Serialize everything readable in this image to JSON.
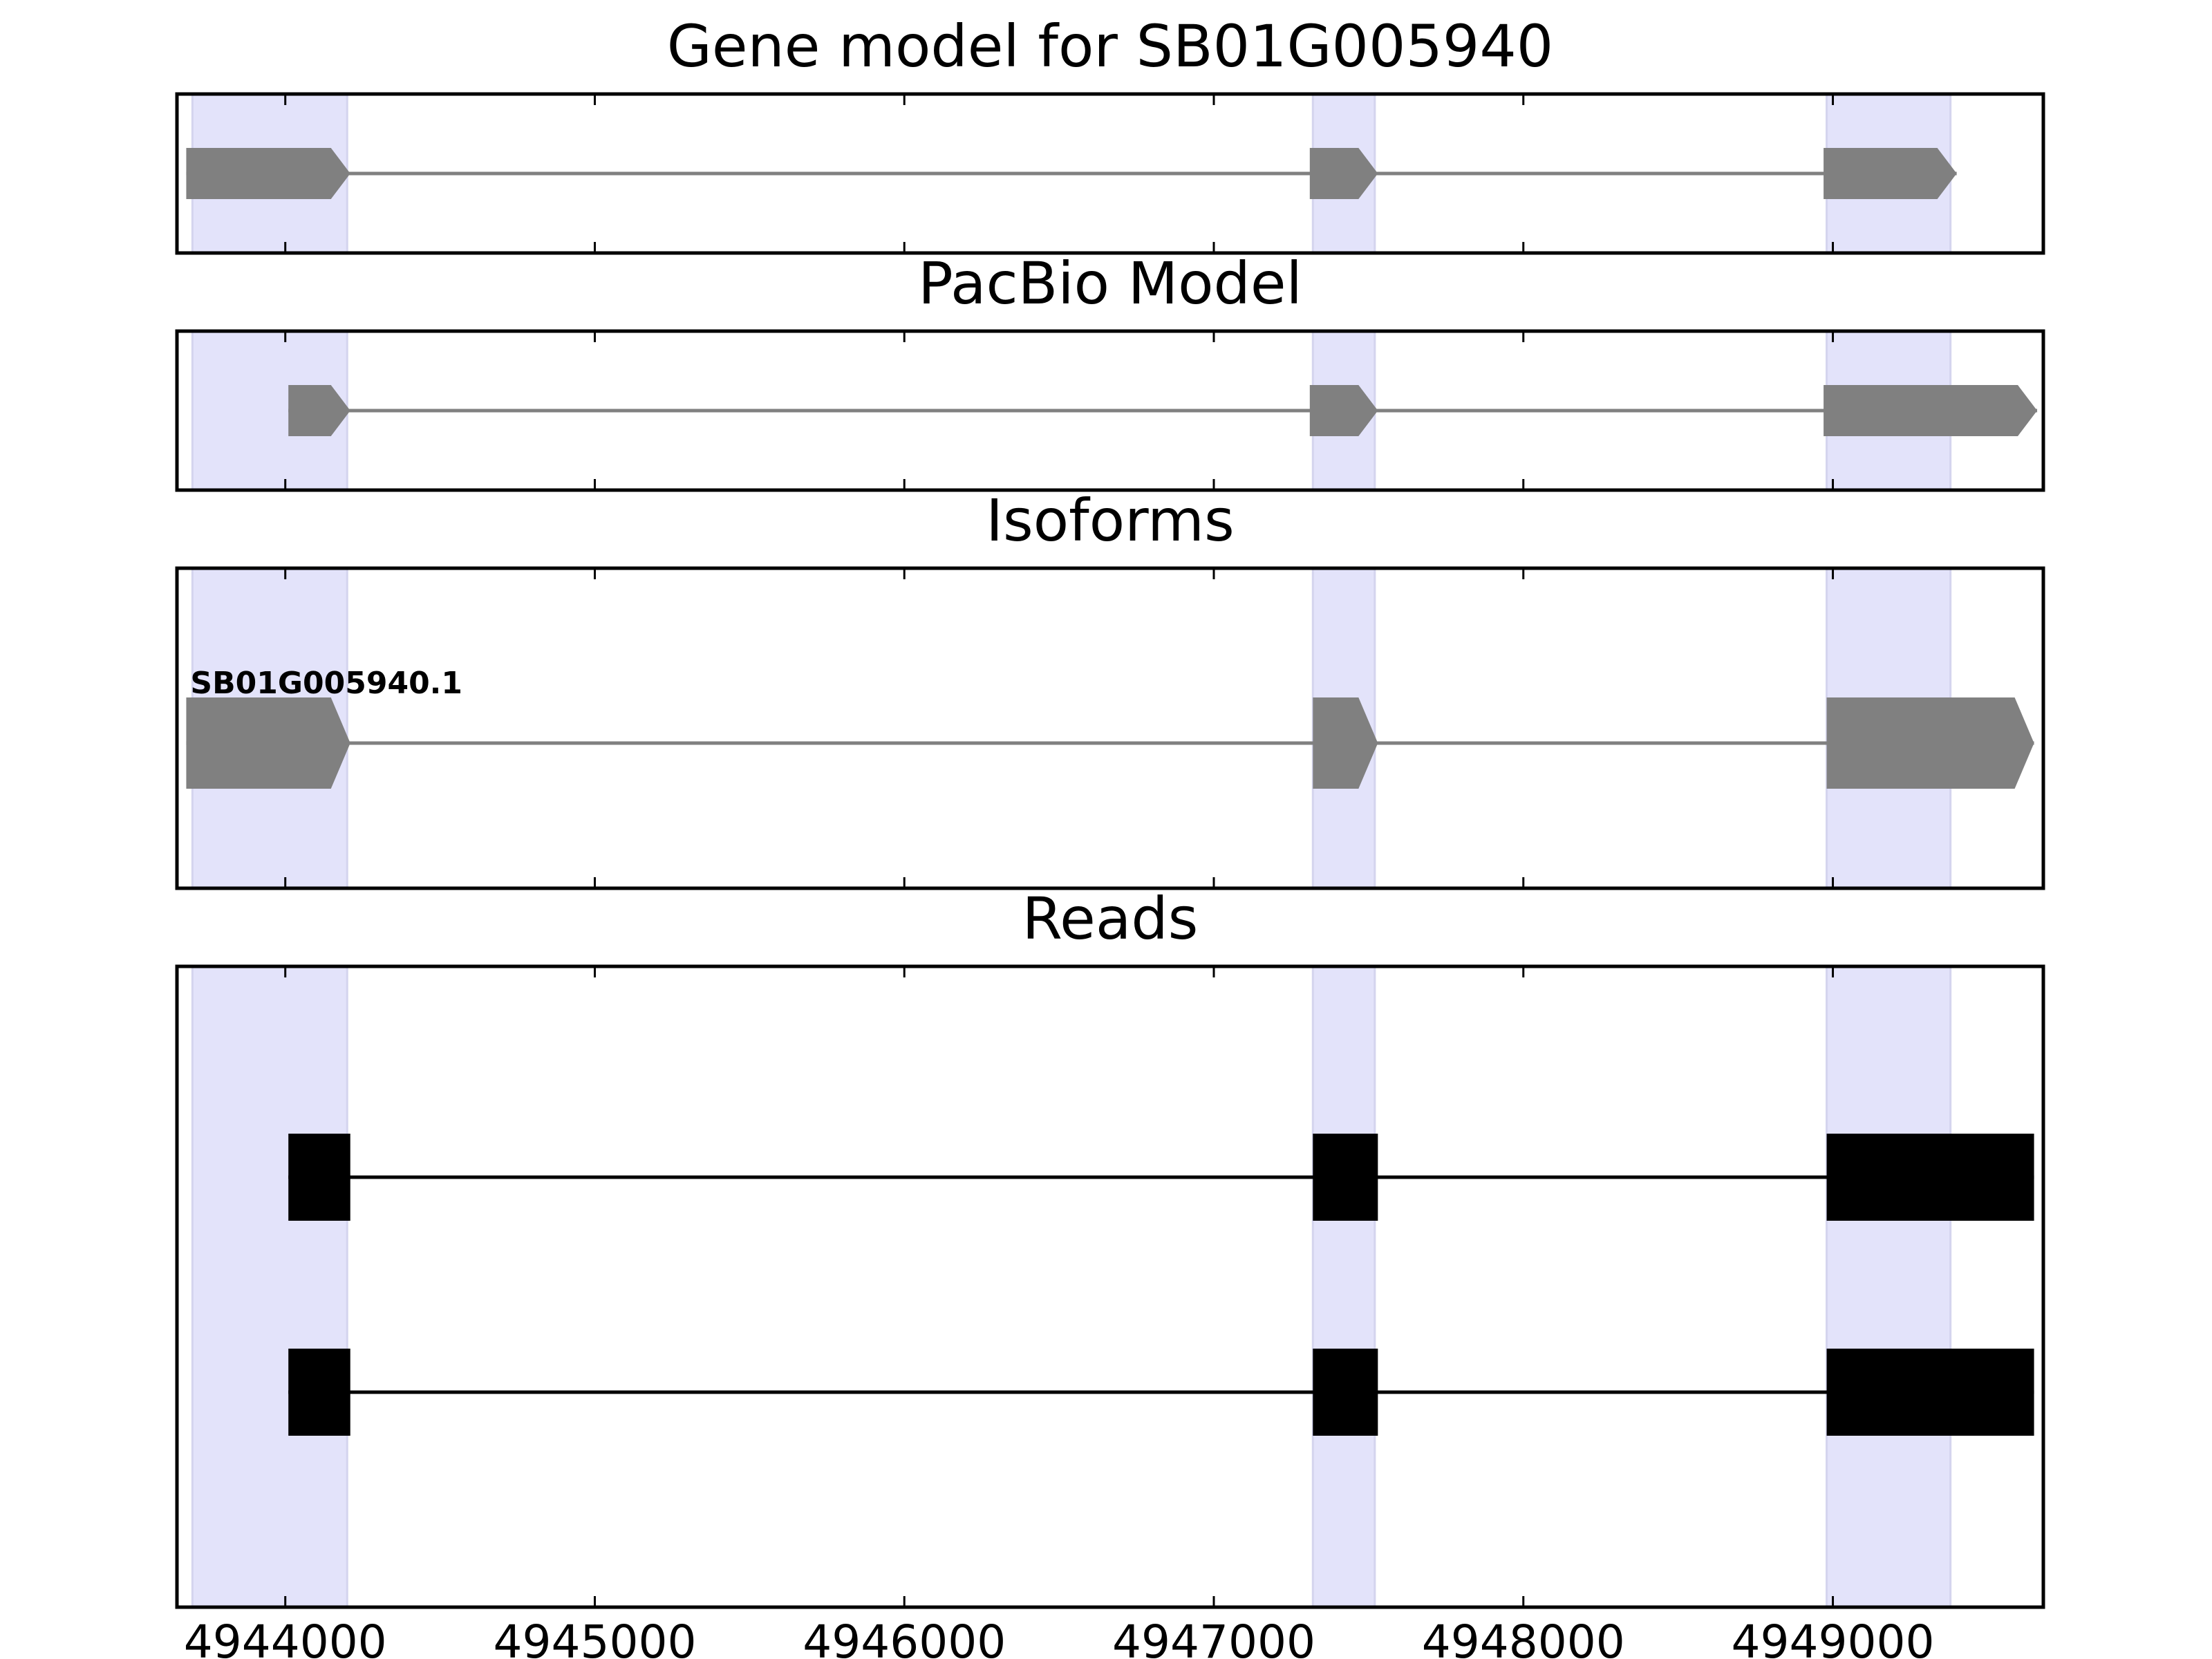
{
  "chart_data": {
    "type": "gene-model-tracks",
    "xlim": [
      4943650,
      4949680
    ],
    "x_ticks": [
      4944000,
      4945000,
      4946000,
      4947000,
      4948000,
      4949000
    ],
    "x_tick_labels": [
      "4944000",
      "4945000",
      "4946000",
      "4947000",
      "4948000",
      "4949000"
    ],
    "highlight_color": "#e3e3fa",
    "feature_color": "#808080",
    "read_color": "#000000",
    "highlight_regions": [
      {
        "start": 4943700,
        "end": 4944200
      },
      {
        "start": 4947320,
        "end": 4947520
      },
      {
        "start": 4948980,
        "end": 4949380
      }
    ],
    "panels": [
      {
        "title": "Gene model for SB01G005940",
        "strand": "+",
        "exons": [
          {
            "start": 4943680,
            "end": 4944210
          },
          {
            "start": 4947310,
            "end": 4947530
          },
          {
            "start": 4948970,
            "end": 4949400
          }
        ]
      },
      {
        "title": "PacBio Model",
        "strand": "+",
        "exons": [
          {
            "start": 4944010,
            "end": 4944210
          },
          {
            "start": 4947310,
            "end": 4947530
          },
          {
            "start": 4948970,
            "end": 4949660
          }
        ]
      },
      {
        "title": "Isoforms",
        "isoforms": [
          {
            "label": "SB01G005940.1",
            "strand": "+",
            "exons": [
              {
                "start": 4943680,
                "end": 4944210
              },
              {
                "start": 4947320,
                "end": 4947530
              },
              {
                "start": 4948980,
                "end": 4949650
              }
            ]
          }
        ]
      },
      {
        "title": "Reads",
        "reads": [
          {
            "exons": [
              {
                "start": 4944010,
                "end": 4944210
              },
              {
                "start": 4947320,
                "end": 4947530
              },
              {
                "start": 4948980,
                "end": 4949650
              }
            ]
          },
          {
            "exons": [
              {
                "start": 4944010,
                "end": 4944210
              },
              {
                "start": 4947320,
                "end": 4947530
              },
              {
                "start": 4948980,
                "end": 4949650
              }
            ]
          }
        ]
      }
    ]
  }
}
